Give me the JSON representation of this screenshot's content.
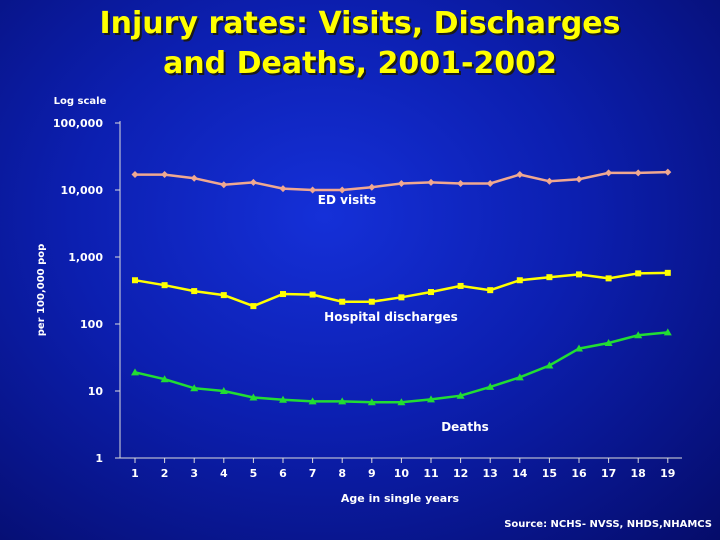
{
  "slide": {
    "title_line1": "Injury rates: Visits, Discharges",
    "title_line2": "and Deaths, 2001-2002",
    "source": "Source: NCHS- NVSS, NHDS,NHAMCS"
  },
  "colors": {
    "background": "#0c1fb0",
    "title": "#ffff00",
    "text": "#ffffff",
    "ed_visits": "#f0a890",
    "hospital_discharges": "#ffff00",
    "deaths": "#22dd33"
  },
  "chart_data": {
    "type": "line",
    "scale_note": "Log scale",
    "ylabel": "per 100,000 pop",
    "xlabel": "Age in single years",
    "yscale": "log",
    "ylim": [
      1,
      100000
    ],
    "y_ticks": [
      1,
      10,
      100,
      1000,
      10000,
      100000
    ],
    "y_tick_labels": [
      "1",
      "10",
      "100",
      "1,000",
      "10,000",
      "100,000"
    ],
    "x": [
      1,
      2,
      3,
      4,
      5,
      6,
      7,
      8,
      9,
      10,
      11,
      12,
      13,
      14,
      15,
      16,
      17,
      18,
      19
    ],
    "grid": false,
    "legend": "none",
    "series": [
      {
        "name": "ED visits",
        "marker": "diamond",
        "color": "#f0a890",
        "values": [
          17000,
          17000,
          15000,
          12000,
          13000,
          10500,
          10000,
          10000,
          11000,
          12500,
          13000,
          12500,
          12500,
          17000,
          13500,
          14500,
          18000,
          18000,
          18500
        ]
      },
      {
        "name": "Hospital discharges",
        "marker": "square",
        "color": "#ffff00",
        "values": [
          450,
          380,
          310,
          270,
          185,
          280,
          275,
          215,
          215,
          250,
          300,
          370,
          320,
          450,
          500,
          550,
          480,
          570,
          580
        ]
      },
      {
        "name": "Deaths",
        "marker": "triangle",
        "color": "#22dd33",
        "values": [
          19,
          15,
          11,
          10,
          8,
          7.4,
          7,
          7,
          6.8,
          6.8,
          7.5,
          8.5,
          11.5,
          16,
          24,
          43,
          52,
          68,
          75
        ]
      }
    ]
  }
}
